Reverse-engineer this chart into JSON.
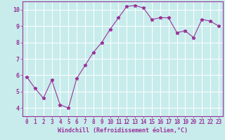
{
  "x": [
    0,
    1,
    2,
    3,
    4,
    5,
    6,
    7,
    8,
    9,
    10,
    11,
    12,
    13,
    14,
    15,
    16,
    17,
    18,
    19,
    20,
    21,
    22,
    23
  ],
  "y": [
    5.9,
    5.2,
    4.6,
    5.7,
    4.2,
    4.0,
    5.8,
    6.6,
    7.4,
    8.0,
    8.8,
    9.5,
    10.2,
    10.25,
    10.1,
    9.4,
    9.5,
    9.5,
    8.6,
    8.7,
    8.3,
    9.4,
    9.3,
    9.0
  ],
  "line_color": "#993399",
  "marker": "*",
  "marker_size": 3.5,
  "bg_color": "#c8ecec",
  "grid_color": "#ffffff",
  "xlabel": "Windchill (Refroidissement éolien,°C)",
  "xlabel_color": "#993399",
  "tick_color": "#993399",
  "spine_color": "#993399",
  "xlim": [
    -0.5,
    23.5
  ],
  "ylim": [
    3.5,
    10.5
  ],
  "yticks": [
    4,
    5,
    6,
    7,
    8,
    9,
    10
  ],
  "xticks": [
    0,
    1,
    2,
    3,
    4,
    5,
    6,
    7,
    8,
    9,
    10,
    11,
    12,
    13,
    14,
    15,
    16,
    17,
    18,
    19,
    20,
    21,
    22,
    23
  ],
  "tick_fontsize": 5.5,
  "xlabel_fontsize": 6.0,
  "linewidth": 0.8
}
